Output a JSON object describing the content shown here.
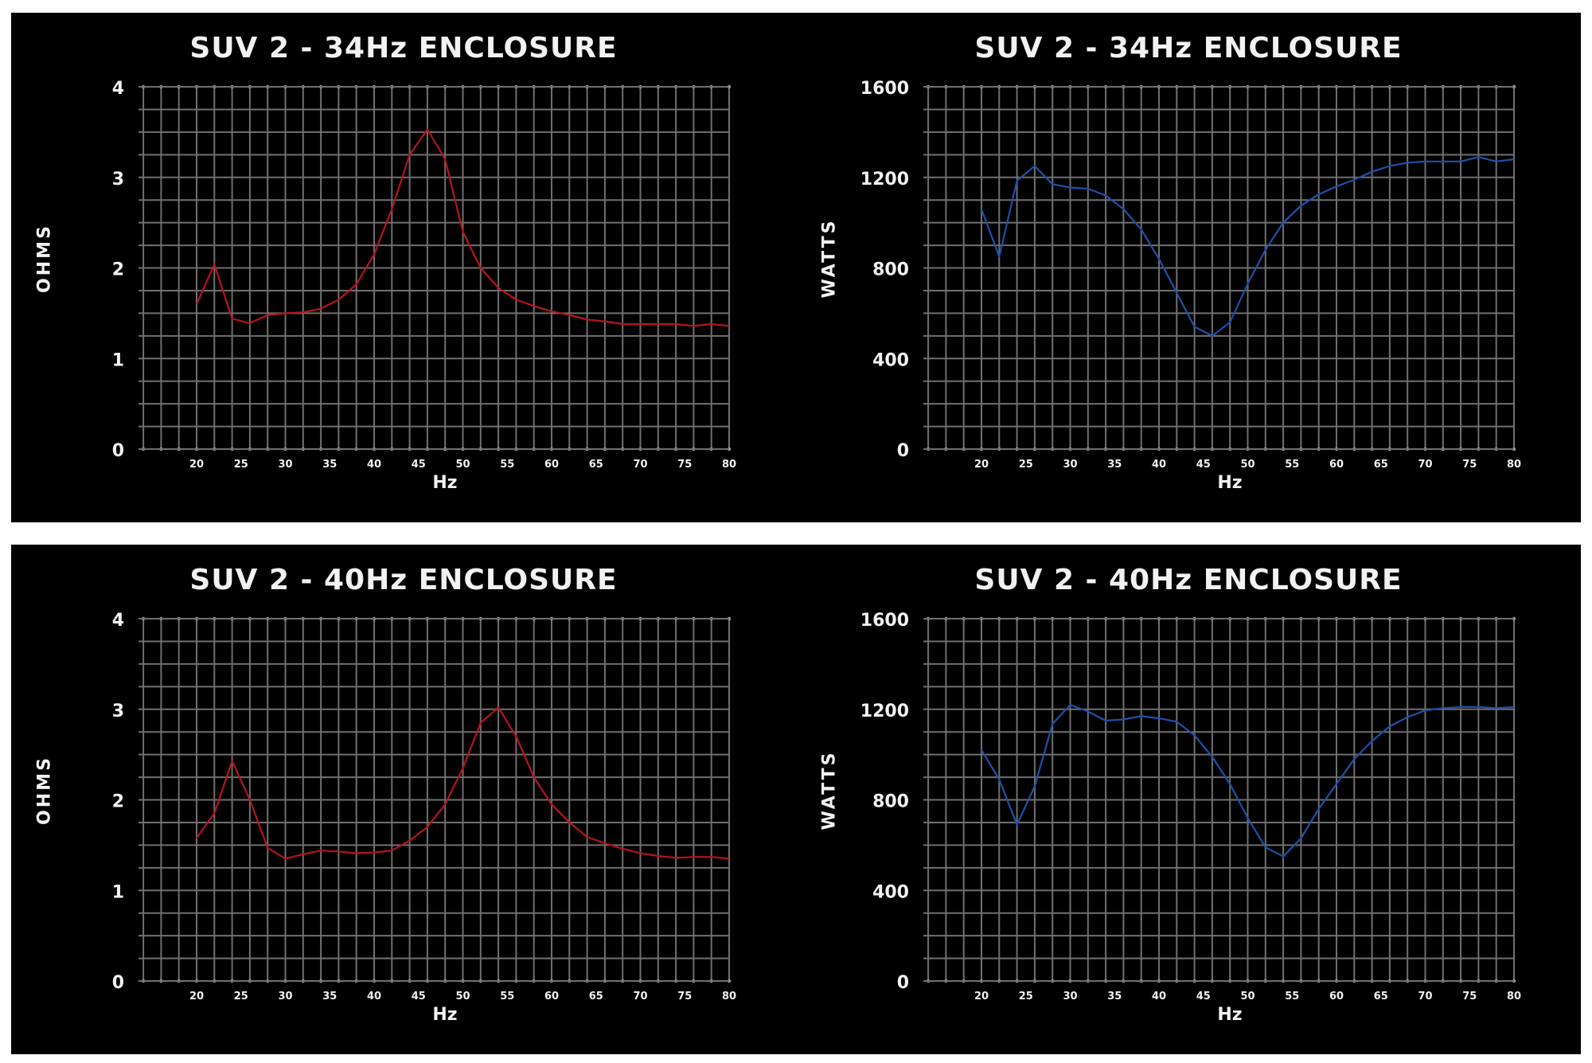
{
  "chart_data": [
    {
      "type": "line",
      "title": "SUV 2 - 34Hz ENCLOSURE",
      "xlabel": "Hz",
      "ylabel": "OHMS",
      "xlim": [
        20,
        80
      ],
      "ylim": [
        0,
        4
      ],
      "xticks": [
        "20",
        "25",
        "30",
        "35",
        "40",
        "45",
        "50",
        "55",
        "60",
        "65",
        "70",
        "75",
        "80"
      ],
      "yticks": [
        "0",
        "1",
        "2",
        "3",
        "4"
      ],
      "grid": true,
      "color": "#b5141c",
      "series": [
        {
          "x": [
            20,
            22,
            24,
            26,
            28,
            30,
            32,
            34,
            36,
            38,
            40,
            42,
            44,
            46,
            48,
            50,
            52,
            54,
            56,
            58,
            60,
            62,
            64,
            66,
            68,
            70,
            72,
            74,
            76,
            78,
            80
          ],
          "y": [
            1.6,
            2.04,
            1.44,
            1.39,
            1.48,
            1.5,
            1.51,
            1.55,
            1.65,
            1.82,
            2.15,
            2.65,
            3.25,
            3.53,
            3.2,
            2.4,
            2.0,
            1.78,
            1.65,
            1.58,
            1.52,
            1.48,
            1.43,
            1.41,
            1.38,
            1.38,
            1.38,
            1.38,
            1.36,
            1.38,
            1.36
          ]
        }
      ]
    },
    {
      "type": "line",
      "title": "SUV 2 - 34Hz ENCLOSURE",
      "xlabel": "Hz",
      "ylabel": "WATTS",
      "xlim": [
        20,
        80
      ],
      "ylim": [
        0,
        1600
      ],
      "xticks": [
        "20",
        "25",
        "30",
        "35",
        "40",
        "45",
        "50",
        "55",
        "60",
        "65",
        "70",
        "75",
        "80"
      ],
      "yticks": [
        "0",
        "400",
        "800",
        "1200",
        "1600"
      ],
      "grid": true,
      "color": "#1f4fa8",
      "series": [
        {
          "x": [
            20,
            22,
            24,
            26,
            28,
            30,
            32,
            34,
            36,
            38,
            40,
            42,
            44,
            46,
            48,
            50,
            52,
            54,
            56,
            58,
            60,
            62,
            64,
            66,
            68,
            70,
            72,
            74,
            76,
            78,
            80
          ],
          "y": [
            1060,
            850,
            1185,
            1250,
            1170,
            1155,
            1150,
            1120,
            1060,
            970,
            840,
            690,
            540,
            500,
            560,
            730,
            880,
            1000,
            1075,
            1125,
            1160,
            1190,
            1225,
            1250,
            1265,
            1270,
            1270,
            1270,
            1290,
            1270,
            1280
          ]
        }
      ]
    },
    {
      "type": "line",
      "title": "SUV 2 - 40Hz ENCLOSURE",
      "xlabel": "Hz",
      "ylabel": "OHMS",
      "xlim": [
        20,
        80
      ],
      "ylim": [
        0,
        4
      ],
      "xticks": [
        "20",
        "25",
        "30",
        "35",
        "40",
        "45",
        "50",
        "55",
        "60",
        "65",
        "70",
        "75",
        "80"
      ],
      "yticks": [
        "0",
        "1",
        "2",
        "3",
        "4"
      ],
      "grid": true,
      "color": "#b5141c",
      "series": [
        {
          "x": [
            20,
            22,
            24,
            26,
            28,
            30,
            32,
            34,
            36,
            38,
            40,
            42,
            44,
            46,
            48,
            50,
            52,
            54,
            56,
            58,
            60,
            62,
            64,
            66,
            68,
            70,
            72,
            74,
            76,
            78,
            80
          ],
          "y": [
            1.58,
            1.85,
            2.43,
            2.0,
            1.47,
            1.35,
            1.4,
            1.44,
            1.43,
            1.41,
            1.42,
            1.44,
            1.55,
            1.7,
            1.95,
            2.35,
            2.85,
            3.02,
            2.7,
            2.25,
            1.95,
            1.75,
            1.59,
            1.52,
            1.46,
            1.41,
            1.38,
            1.36,
            1.37,
            1.37,
            1.35
          ]
        }
      ]
    },
    {
      "type": "line",
      "title": "SUV 2 - 40Hz ENCLOSURE",
      "xlabel": "Hz",
      "ylabel": "WATTS",
      "xlim": [
        20,
        80
      ],
      "ylim": [
        0,
        1600
      ],
      "xticks": [
        "20",
        "25",
        "30",
        "35",
        "40",
        "45",
        "50",
        "55",
        "60",
        "65",
        "70",
        "75",
        "80"
      ],
      "yticks": [
        "0",
        "400",
        "800",
        "1200",
        "1600"
      ],
      "grid": true,
      "color": "#1f4fa8",
      "series": [
        {
          "x": [
            20,
            22,
            24,
            26,
            28,
            30,
            32,
            34,
            36,
            38,
            40,
            42,
            44,
            46,
            48,
            50,
            52,
            54,
            56,
            58,
            60,
            62,
            64,
            66,
            68,
            70,
            72,
            74,
            76,
            78,
            80
          ],
          "y": [
            1020,
            890,
            690,
            860,
            1135,
            1220,
            1190,
            1150,
            1155,
            1170,
            1160,
            1145,
            1085,
            990,
            870,
            720,
            590,
            550,
            630,
            760,
            870,
            980,
            1060,
            1125,
            1165,
            1195,
            1205,
            1210,
            1210,
            1205,
            1210
          ]
        }
      ]
    }
  ]
}
